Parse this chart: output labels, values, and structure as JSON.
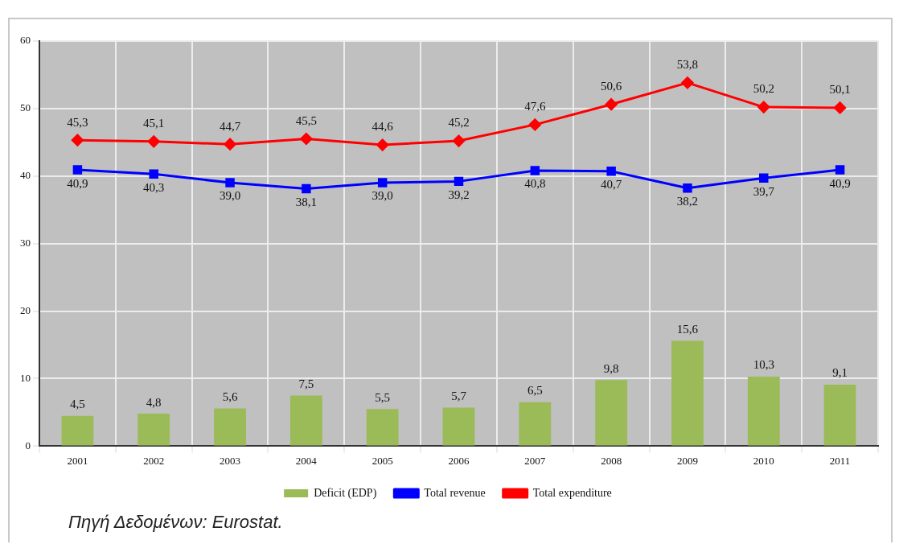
{
  "chart_data": {
    "type": "bar",
    "categories": [
      "2001",
      "2002",
      "2003",
      "2004",
      "2005",
      "2006",
      "2007",
      "2008",
      "2009",
      "2010",
      "2011"
    ],
    "series": [
      {
        "name": "Deficit (EDP)",
        "color": "#9bbb59",
        "values": [
          4.5,
          4.8,
          5.6,
          7.5,
          5.5,
          5.7,
          6.5,
          9.8,
          15.6,
          10.3,
          9.1
        ],
        "value_labels": [
          "4,5",
          "4,8",
          "5,6",
          "7,5",
          "5,5",
          "5,7",
          "6,5",
          "9,8",
          "15,6",
          "10,3",
          "9,1"
        ]
      },
      {
        "name": "Total revenue",
        "type": "line",
        "color": "#0000ff",
        "marker": "square",
        "values": [
          40.9,
          40.3,
          39.0,
          38.1,
          39.0,
          39.2,
          40.8,
          40.7,
          38.2,
          39.7,
          40.9
        ],
        "value_labels": [
          "40,9",
          "40,3",
          "39,0",
          "38,1",
          "39,0",
          "39,2",
          "40,8",
          "40,7",
          "38,2",
          "39,7",
          "40,9"
        ]
      },
      {
        "name": "Total expenditure",
        "type": "line",
        "color": "#ff0000",
        "marker": "diamond",
        "values": [
          45.3,
          45.1,
          44.7,
          45.5,
          44.6,
          45.2,
          47.6,
          50.6,
          53.8,
          50.2,
          50.1
        ],
        "value_labels": [
          "45,3",
          "45,1",
          "44,7",
          "45,5",
          "44,6",
          "45,2",
          "47,6",
          "50,6",
          "53,8",
          "50,2",
          "50,1"
        ]
      }
    ],
    "ylim": [
      0,
      60
    ],
    "yticks": [
      0,
      10,
      20,
      30,
      40,
      50,
      60
    ],
    "grid": true,
    "legend": "bottom",
    "annotations": [
      "Πηγή Δεδομένων: Eurostat."
    ]
  }
}
